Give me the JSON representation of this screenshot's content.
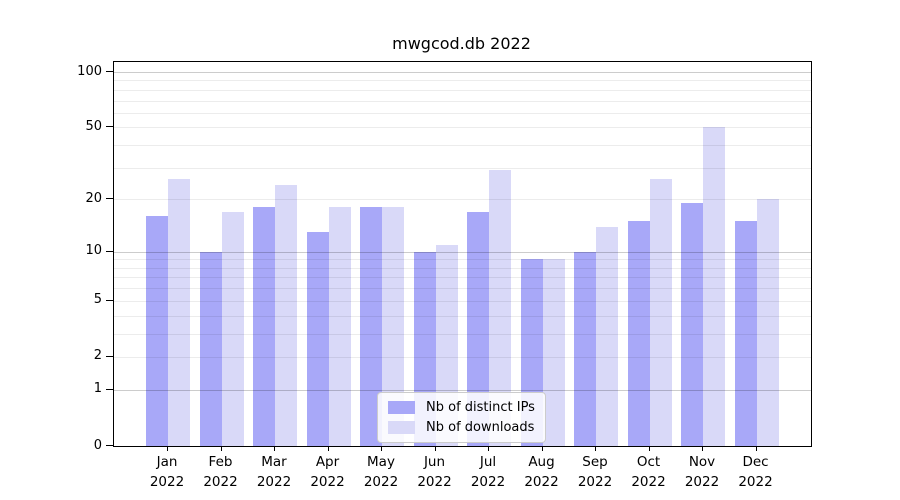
{
  "chart_data": {
    "type": "bar",
    "title": "mwgcod.db 2022",
    "categories": [
      "Jan 2022",
      "Feb 2022",
      "Mar 2022",
      "Apr 2022",
      "May 2022",
      "Jun 2022",
      "Jul 2022",
      "Aug 2022",
      "Sep 2022",
      "Oct 2022",
      "Nov 2022",
      "Dec 2022"
    ],
    "series": [
      {
        "name": "Nb of distinct IPs",
        "color": "#a8a8f8",
        "values": [
          16,
          10,
          18,
          13,
          18,
          10,
          17,
          9,
          10,
          15,
          19,
          15
        ]
      },
      {
        "name": "Nb of downloads",
        "color": "#d9d9f8",
        "values": [
          26,
          17,
          24,
          18,
          18,
          11,
          29,
          9,
          14,
          26,
          50,
          20
        ]
      }
    ],
    "yscale": "log1p",
    "ylim": [
      0,
      113
    ],
    "yticks": [
      0,
      1,
      2,
      5,
      10,
      20,
      50,
      100
    ],
    "ytick_labels": [
      "0",
      "1",
      "2",
      "5",
      "10",
      "20",
      "50",
      "100"
    ],
    "major_gridlines": [
      1,
      10,
      100
    ],
    "minor_gridlines": [
      2,
      3,
      4,
      5,
      6,
      7,
      8,
      9,
      20,
      30,
      40,
      50,
      60,
      70,
      80,
      90
    ],
    "grid": true,
    "legend_position": "bottom-center"
  },
  "colors": {
    "spine": "#000000",
    "text": "#000000",
    "major_grid": "rgba(0,0,0,0.20)",
    "minor_grid": "rgba(0,0,0,0.075)",
    "legend_border": "#cccccc",
    "legend_background": "rgba(255,255,255,0.85)"
  }
}
